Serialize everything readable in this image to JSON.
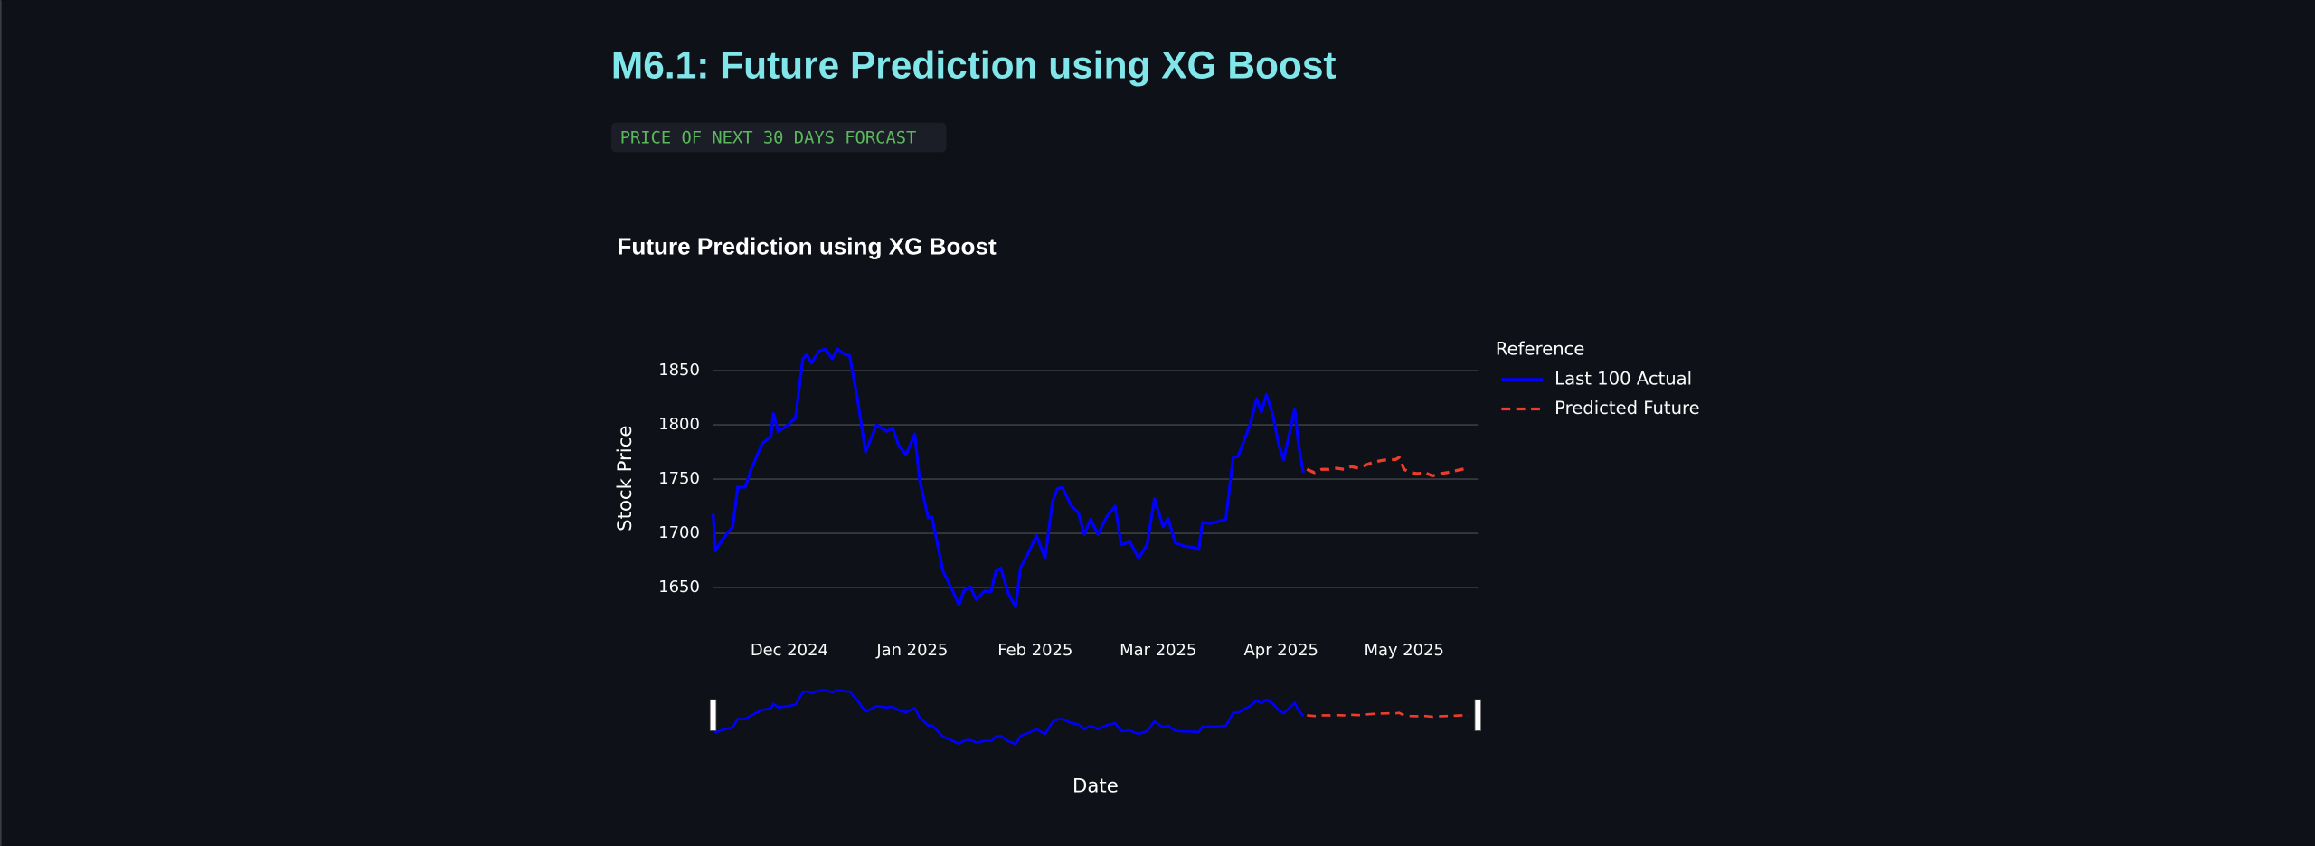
{
  "page": {
    "title": "M6.1: Future Prediction using XG Boost",
    "caption": "PRICE OF NEXT 30 DAYS FORCAST"
  },
  "chart_data": {
    "type": "line",
    "title": "Future Prediction using XG Boost",
    "x_label": "Date",
    "y_label": "Stock Price",
    "legend_title": "Reference",
    "legend_position": "right",
    "xlim": [
      -0.62,
      5.6
    ],
    "xticks": [
      {
        "value": 0,
        "label": "Dec 2024"
      },
      {
        "value": 1,
        "label": "Jan 2025"
      },
      {
        "value": 2,
        "label": "Feb 2025"
      },
      {
        "value": 3,
        "label": "Mar 2025"
      },
      {
        "value": 4,
        "label": "Apr 2025"
      },
      {
        "value": 5,
        "label": "May 2025"
      }
    ],
    "ylim": [
      1620,
      1880
    ],
    "yticks": [
      1650,
      1700,
      1750,
      1800,
      1850
    ],
    "grid": true,
    "rangeslider": true,
    "series": [
      {
        "name": "Last 100 Actual",
        "color": "#0000ff",
        "line_style": "solid",
        "x": [
          -0.62,
          -0.6,
          -0.54,
          -0.46,
          -0.42,
          -0.36,
          -0.31,
          -0.22,
          -0.15,
          -0.13,
          -0.09,
          -0.01,
          0.05,
          0.11,
          0.14,
          0.18,
          0.24,
          0.29,
          0.35,
          0.39,
          0.45,
          0.49,
          0.55,
          0.62,
          0.71,
          0.79,
          0.84,
          0.89,
          0.95,
          1.02,
          1.06,
          1.13,
          1.16,
          1.25,
          1.32,
          1.38,
          1.42,
          1.47,
          1.52,
          1.59,
          1.64,
          1.68,
          1.72,
          1.78,
          1.84,
          1.88,
          1.94,
          2.01,
          2.08,
          2.14,
          2.18,
          2.22,
          2.29,
          2.35,
          2.4,
          2.45,
          2.51,
          2.58,
          2.65,
          2.7,
          2.77,
          2.84,
          2.91,
          2.97,
          3.04,
          3.08,
          3.14,
          3.22,
          3.29,
          3.33,
          3.36,
          3.42,
          3.49,
          3.55,
          3.61,
          3.65,
          3.69,
          3.75,
          3.8,
          3.84,
          3.88,
          3.93,
          3.98,
          4.02,
          4.07,
          4.11,
          4.14,
          4.18
        ],
        "values": [
          1718,
          1684,
          1695,
          1706,
          1742.5,
          1742.5,
          1759,
          1783,
          1789,
          1810.5,
          1794,
          1800,
          1806.5,
          1861,
          1865,
          1857,
          1868,
          1870,
          1861,
          1870,
          1865,
          1864,
          1827,
          1775,
          1800,
          1794,
          1797,
          1781,
          1772.5,
          1791.5,
          1749,
          1714,
          1715,
          1665,
          1649,
          1634,
          1647,
          1651,
          1639,
          1647,
          1646,
          1665,
          1668,
          1645,
          1632,
          1668,
          1681,
          1698,
          1677,
          1729,
          1741,
          1742.5,
          1726,
          1719,
          1699,
          1713,
          1699,
          1715,
          1725,
          1689.5,
          1692,
          1677,
          1689.5,
          1732,
          1706,
          1714,
          1691,
          1688,
          1687,
          1685,
          1710,
          1709,
          1711,
          1713,
          1770,
          1771,
          1783,
          1801,
          1824,
          1812,
          1828,
          1810.5,
          1782,
          1768,
          1793,
          1815,
          1783,
          1756
        ]
      },
      {
        "name": "Predicted Future",
        "color": "#ef3b2c",
        "line_style": "dash",
        "x": [
          4.21,
          4.27,
          4.33,
          4.39,
          4.45,
          4.51,
          4.57,
          4.63,
          4.69,
          4.75,
          4.81,
          4.87,
          4.93,
          4.96,
          5.0,
          5.05,
          5.11,
          5.17,
          5.23,
          5.29,
          5.35,
          5.41,
          5.47,
          5.53
        ],
        "values": [
          1759,
          1756,
          1759,
          1759,
          1760,
          1759,
          1761.5,
          1760,
          1763,
          1765.6,
          1767,
          1768,
          1768,
          1770,
          1759,
          1756,
          1755,
          1756,
          1753,
          1755,
          1756,
          1757.5,
          1759,
          1760
        ]
      }
    ]
  }
}
